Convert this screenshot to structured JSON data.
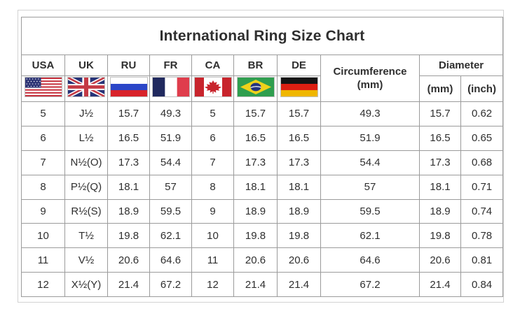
{
  "title": "International Ring Size Chart",
  "table": {
    "countries": [
      {
        "key": "usa",
        "label": "USA",
        "flag": "us",
        "icon": "usa-flag-icon"
      },
      {
        "key": "uk",
        "label": "UK",
        "flag": "uk",
        "icon": "uk-flag-icon"
      },
      {
        "key": "ru",
        "label": "RU",
        "flag": "ru",
        "icon": "russia-flag-icon"
      },
      {
        "key": "fr",
        "label": "FR",
        "flag": "fr",
        "icon": "france-flag-icon"
      },
      {
        "key": "ca",
        "label": "CA",
        "flag": "ca",
        "icon": "canada-flag-icon"
      },
      {
        "key": "br",
        "label": "BR",
        "flag": "br",
        "icon": "brazil-flag-icon"
      },
      {
        "key": "de",
        "label": "DE",
        "flag": "de",
        "icon": "germany-flag-icon"
      }
    ],
    "headers": {
      "circumference_line1": "Circumference",
      "circumference_line2": "(mm)",
      "diameter": "Diameter",
      "diameter_mm": "(mm)",
      "diameter_inch": "(inch)"
    },
    "column_keys": [
      "usa",
      "uk",
      "ru",
      "fr",
      "ca",
      "br",
      "de",
      "circumference-mm",
      "diameter-mm",
      "diameter-inch"
    ]
  },
  "colors": {
    "table_border": "#9b9b9b",
    "frame_border": "#d2d2d2",
    "text": "#2f2f2f",
    "background": "#ffffff"
  },
  "chart_data": {
    "type": "table",
    "title": "International Ring Size Chart",
    "columns": [
      "USA",
      "UK",
      "RU",
      "FR",
      "CA",
      "BR",
      "DE",
      "Circumference (mm)",
      "Diameter (mm)",
      "Diameter (inch)"
    ],
    "rows": [
      [
        5,
        "J½",
        15.7,
        49.3,
        5,
        15.7,
        15.7,
        49.3,
        15.7,
        0.62
      ],
      [
        6,
        "L½",
        16.5,
        51.9,
        6,
        16.5,
        16.5,
        51.9,
        16.5,
        0.65
      ],
      [
        7,
        "N½(O)",
        17.3,
        54.4,
        7,
        17.3,
        17.3,
        54.4,
        17.3,
        0.68
      ],
      [
        8,
        "P½(Q)",
        18.1,
        57,
        8,
        18.1,
        18.1,
        57,
        18.1,
        0.71
      ],
      [
        9,
        "R½(S)",
        18.9,
        59.5,
        9,
        18.9,
        18.9,
        59.5,
        18.9,
        0.74
      ],
      [
        10,
        "T½",
        19.8,
        62.1,
        10,
        19.8,
        19.8,
        62.1,
        19.8,
        0.78
      ],
      [
        11,
        "V½",
        20.6,
        64.6,
        11,
        20.6,
        20.6,
        64.6,
        20.6,
        0.81
      ],
      [
        12,
        "X½(Y)",
        21.4,
        67.2,
        12,
        21.4,
        21.4,
        67.2,
        21.4,
        0.84
      ]
    ]
  }
}
